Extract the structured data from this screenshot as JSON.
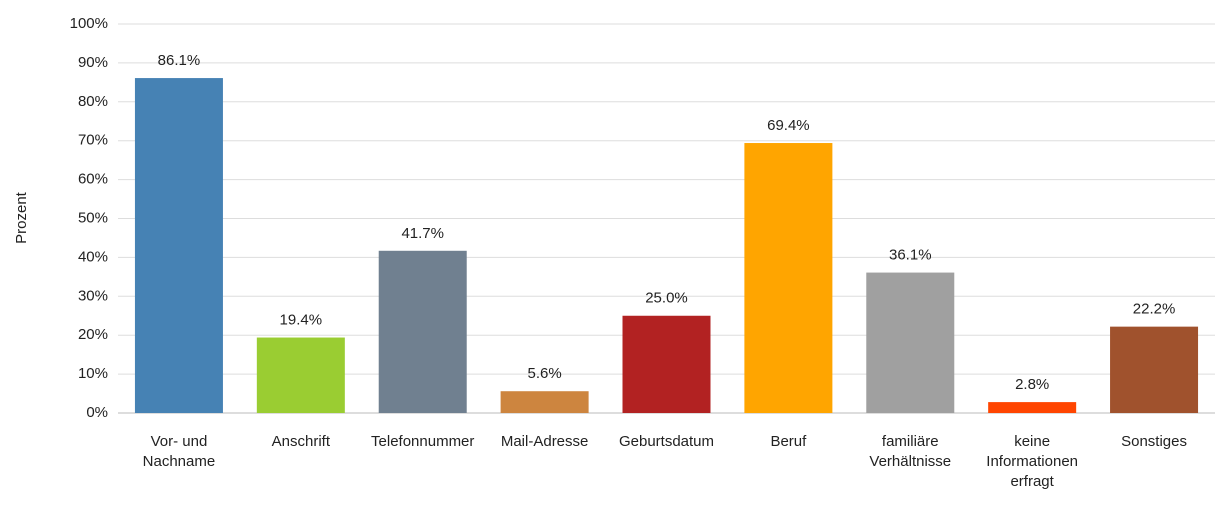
{
  "chart_data": {
    "type": "bar",
    "y_label": "Prozent",
    "categories": [
      "Vor- und Nachname",
      "Anschrift",
      "Telefonnummer",
      "Mail-Adresse",
      "Geburtsdatum",
      "Beruf",
      "familiäre Verhältnisse",
      "keine Informationen erfragt",
      "Sonstiges"
    ],
    "values": [
      86.1,
      19.4,
      41.7,
      5.6,
      25.0,
      69.4,
      36.1,
      2.8,
      22.2
    ],
    "value_labels": [
      "86.1%",
      "19.4%",
      "41.7%",
      "5.6%",
      "25.0%",
      "69.4%",
      "36.1%",
      "2.8%",
      "22.2%"
    ],
    "colors": [
      "#4682b4",
      "#9acd32",
      "#708090",
      "#cd853f",
      "#b22222",
      "#ffa500",
      "#a0a0a0",
      "#ff4500",
      "#a0522d"
    ],
    "ylim": [
      0,
      100
    ],
    "yticks": [
      {
        "value": 0,
        "label": "0%"
      },
      {
        "value": 10,
        "label": "10%"
      },
      {
        "value": 20,
        "label": "20%"
      },
      {
        "value": 30,
        "label": "30%"
      },
      {
        "value": 40,
        "label": "40%"
      },
      {
        "value": 50,
        "label": "50%"
      },
      {
        "value": 60,
        "label": "60%"
      },
      {
        "value": 70,
        "label": "70%"
      },
      {
        "value": 80,
        "label": "80%"
      },
      {
        "value": 90,
        "label": "90%"
      },
      {
        "value": 100,
        "label": "100%"
      }
    ],
    "grid": true
  }
}
